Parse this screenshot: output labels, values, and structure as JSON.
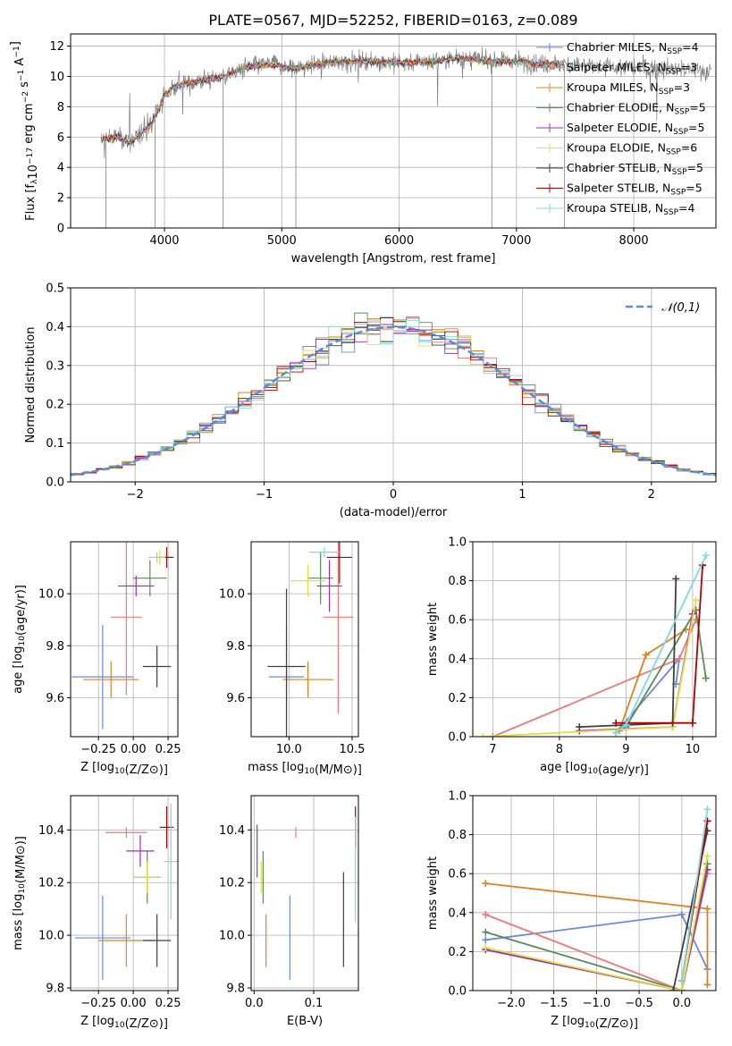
{
  "title": "PLATE=0567, MJD=52252, FIBERID=0163, z=0.089",
  "colors": {
    "Chabrier MILES": "#6a8ad8",
    "Salpeter MILES": "#f07878",
    "Kroupa MILES": "#e08020",
    "Chabrier ELODIE": "#5a8a5a",
    "Salpeter ELODIE": "#9b30b0",
    "Kroupa ELODIE": "#e0e040",
    "Chabrier STELIB": "#404040",
    "Salpeter STELIB": "#b00000",
    "Kroupa STELIB": "#80d8e0",
    "data": "#808080"
  },
  "chart_data": [
    {
      "id": "spectrum",
      "type": "line",
      "title": "PLATE=0567, MJD=52252, FIBERID=0163, z=0.089",
      "xlabel": "wavelength [Angstrom, rest frame]",
      "ylabel": "Flux [f_λ10^-17 erg cm^-2 s^-1 A^-1]",
      "xlim": [
        3200,
        8700
      ],
      "ylim": [
        0,
        12.8
      ],
      "xticks": [
        4000,
        5000,
        6000,
        7000,
        8000
      ],
      "yticks": [
        0,
        2,
        4,
        6,
        8,
        10,
        12
      ],
      "legend_position": "right",
      "legend": [
        {
          "label": "Chabrier MILES, N",
          "sub": "SSP",
          "tail": "=4",
          "model": "Chabrier MILES"
        },
        {
          "label": "Salpeter MILES, N",
          "sub": "SSP",
          "tail": "=3",
          "model": "Salpeter MILES"
        },
        {
          "label": "Kroupa MILES, N",
          "sub": "SSP",
          "tail": "=3",
          "model": "Kroupa MILES"
        },
        {
          "label": "Chabrier ELODIE, N",
          "sub": "SSP",
          "tail": "=5",
          "model": "Chabrier ELODIE"
        },
        {
          "label": "Salpeter ELODIE, N",
          "sub": "SSP",
          "tail": "=5",
          "model": "Salpeter ELODIE"
        },
        {
          "label": "Kroupa ELODIE, N",
          "sub": "SSP",
          "tail": "=6",
          "model": "Kroupa ELODIE"
        },
        {
          "label": "Chabrier STELIB, N",
          "sub": "SSP",
          "tail": "=5",
          "model": "Chabrier STELIB"
        },
        {
          "label": "Salpeter STELIB, N",
          "sub": "SSP",
          "tail": "=5",
          "model": "Salpeter STELIB"
        },
        {
          "label": "Kroupa STELIB, N",
          "sub": "SSP",
          "tail": "=4",
          "model": "Kroupa STELIB"
        }
      ],
      "continuum": [
        [
          3460,
          5.8
        ],
        [
          3600,
          6.0
        ],
        [
          3700,
          5.6
        ],
        [
          3800,
          6.2
        ],
        [
          3900,
          7.0
        ],
        [
          3950,
          7.8
        ],
        [
          4000,
          8.8
        ],
        [
          4100,
          9.4
        ],
        [
          4300,
          9.7
        ],
        [
          4500,
          10.0
        ],
        [
          4700,
          10.6
        ],
        [
          4900,
          10.8
        ],
        [
          5100,
          10.5
        ],
        [
          5300,
          10.8
        ],
        [
          5500,
          11.0
        ],
        [
          5800,
          11.0
        ],
        [
          6000,
          10.9
        ],
        [
          6300,
          11.0
        ],
        [
          6500,
          11.2
        ],
        [
          6800,
          11.0
        ],
        [
          7000,
          11.0
        ],
        [
          7200,
          10.8
        ],
        [
          7400,
          10.8
        ],
        [
          7700,
          10.6
        ],
        [
          8000,
          10.6
        ],
        [
          8300,
          10.5
        ],
        [
          8600,
          10.4
        ]
      ],
      "model_range": [
        3460,
        7400
      ],
      "spikes": [
        {
          "x": 3500,
          "y": 0
        },
        {
          "x": 3920,
          "y": 0
        },
        {
          "x": 4500,
          "y": 0
        },
        {
          "x": 5120,
          "y": 0
        },
        {
          "x": 6790,
          "y": 0
        },
        {
          "x": 7410,
          "y": 0
        }
      ]
    },
    {
      "id": "residual_histogram",
      "type": "bar",
      "xlabel": "(data-model)/error",
      "ylabel": "Normed distribution",
      "xlim": [
        -2.5,
        2.5
      ],
      "ylim": [
        0,
        0.5
      ],
      "xticks": [
        -2,
        -1,
        0,
        1,
        2
      ],
      "yticks": [
        0.0,
        0.1,
        0.2,
        0.3,
        0.4,
        0.5
      ],
      "legend": "𝒩(0,1)",
      "legend_position": "top-right",
      "bin_width": 0.1,
      "x_start": -2.5,
      "n_bins": 50
    },
    {
      "id": "age_vs_Z",
      "type": "scatter",
      "xlabel": "Z [log10(Z/Z⊙)]",
      "ylabel": "age  [log10(age/yr)]",
      "xlim": [
        -0.45,
        0.32
      ],
      "ylim": [
        9.45,
        10.2
      ],
      "xticks": [
        -0.25,
        0.0,
        0.25
      ],
      "yticks": [
        9.6,
        9.8,
        10.0
      ],
      "points": [
        {
          "model": "Chabrier MILES",
          "x": -0.22,
          "y": 9.68,
          "xerr": 0.22,
          "yerr": 0.2
        },
        {
          "model": "Salpeter MILES",
          "x": -0.05,
          "y": 9.91,
          "xerr": 0.11,
          "yerr": 0.3
        },
        {
          "model": "Kroupa MILES",
          "x": -0.16,
          "y": 9.67,
          "xerr": 0.2,
          "yerr": 0.07
        },
        {
          "model": "Chabrier ELODIE",
          "x": 0.12,
          "y": 10.06,
          "xerr": 0.12,
          "yerr": 0.07
        },
        {
          "model": "Salpeter ELODIE",
          "x": 0.02,
          "y": 10.03,
          "xerr": 0.13,
          "yerr": 0.04
        },
        {
          "model": "Kroupa ELODIE",
          "x": 0.19,
          "y": 10.14,
          "xerr": 0.04,
          "yerr": 0.03
        },
        {
          "model": "Chabrier STELIB",
          "x": 0.17,
          "y": 9.72,
          "xerr": 0.1,
          "yerr": 0.08
        },
        {
          "model": "Salpeter STELIB",
          "x": 0.24,
          "y": 10.14,
          "xerr": 0.05,
          "yerr": 0.04
        },
        {
          "model": "Kroupa STELIB",
          "x": 0.17,
          "y": 10.14,
          "xerr": 0.06,
          "yerr": 0.02
        }
      ]
    },
    {
      "id": "age_vs_mass",
      "type": "scatter",
      "xlabel": "mass [log10(M/M⊙)]",
      "ylabel": "",
      "xlim": [
        9.7,
        10.55
      ],
      "ylim": [
        9.45,
        10.2
      ],
      "xticks": [
        10.0,
        10.5
      ],
      "yticks": [
        9.6,
        9.8,
        10.0
      ],
      "points": [
        {
          "model": "Chabrier MILES",
          "x": 9.98,
          "y": 9.68,
          "xerr": 0.14,
          "yerr": 0.2
        },
        {
          "model": "Salpeter MILES",
          "x": 10.39,
          "y": 9.91,
          "xerr": 0.12,
          "yerr": 0.37
        },
        {
          "model": "Kroupa MILES",
          "x": 10.15,
          "y": 9.67,
          "xerr": 0.2,
          "yerr": 0.07
        },
        {
          "model": "Chabrier ELODIE",
          "x": 10.25,
          "y": 10.06,
          "xerr": 0.1,
          "yerr": 0.1
        },
        {
          "model": "Salpeter ELODIE",
          "x": 10.32,
          "y": 10.03,
          "xerr": 0.1,
          "yerr": 0.1
        },
        {
          "model": "Kroupa ELODIE",
          "x": 10.15,
          "y": 10.05,
          "xerr": 0.14,
          "yerr": 0.06
        },
        {
          "model": "Chabrier STELIB",
          "x": 9.98,
          "y": 9.72,
          "xerr": 0.15,
          "yerr": 0.3
        },
        {
          "model": "Salpeter STELIB",
          "x": 10.4,
          "y": 10.14,
          "xerr": 0.1,
          "yerr": 0.1
        },
        {
          "model": "Kroupa STELIB",
          "x": 10.28,
          "y": 10.16,
          "xerr": 0.12,
          "yerr": 0.02
        }
      ]
    },
    {
      "id": "mass_weight_vs_age",
      "type": "line",
      "xlabel": "age  [log10(age/yr)]",
      "ylabel": "mass weight",
      "xlim": [
        6.7,
        10.35
      ],
      "ylim": [
        0,
        1.0
      ],
      "xticks": [
        7,
        8,
        9,
        10
      ],
      "yticks": [
        0.0,
        0.2,
        0.4,
        0.6,
        0.8,
        1.0
      ],
      "series": [
        {
          "model": "Chabrier MILES",
          "x": [
            8.85,
            9.8,
            9.75
          ],
          "y": [
            0.02,
            0.4,
            0.27
          ]
        },
        {
          "model": "Salpeter MILES",
          "x": [
            7.0,
            9.8,
            10.05
          ],
          "y": [
            0.0,
            0.4,
            0.6
          ]
        },
        {
          "model": "Kroupa MILES",
          "x": [
            8.9,
            9.3,
            9.9
          ],
          "y": [
            0.03,
            0.42,
            0.55
          ]
        },
        {
          "model": "Chabrier ELODIE",
          "x": [
            8.85,
            9.0,
            10.05,
            10.2
          ],
          "y": [
            0.02,
            0.05,
            0.65,
            0.3
          ]
        },
        {
          "model": "Salpeter ELODIE",
          "x": [
            8.3,
            9.7,
            10.0
          ],
          "y": [
            0.03,
            0.05,
            0.63
          ]
        },
        {
          "model": "Kroupa ELODIE",
          "x": [
            6.85,
            9.7,
            10.05
          ],
          "y": [
            0.0,
            0.05,
            0.7
          ]
        },
        {
          "model": "Chabrier STELIB",
          "x": [
            8.3,
            9.7,
            9.75
          ],
          "y": [
            0.05,
            0.07,
            0.81
          ]
        },
        {
          "model": "Salpeter STELIB",
          "x": [
            8.85,
            10.0,
            10.15
          ],
          "y": [
            0.07,
            0.07,
            0.88
          ]
        },
        {
          "model": "Kroupa STELIB",
          "x": [
            8.85,
            9.0,
            10.2
          ],
          "y": [
            0.02,
            0.06,
            0.93
          ]
        }
      ]
    },
    {
      "id": "mass_vs_Z",
      "type": "scatter",
      "xlabel": "Z [log10(Z/Z⊙)]",
      "ylabel": "mass [log10(M/M⊙)]",
      "xlim": [
        -0.45,
        0.32
      ],
      "ylim": [
        9.79,
        10.53
      ],
      "xticks": [
        -0.25,
        0.0,
        0.25
      ],
      "yticks": [
        9.8,
        10.0,
        10.2,
        10.4
      ],
      "points": [
        {
          "model": "Chabrier MILES",
          "x": -0.22,
          "y": 9.99,
          "xerr": 0.2,
          "yerr": 0.16
        },
        {
          "model": "Salpeter MILES",
          "x": -0.05,
          "y": 10.39,
          "xerr": 0.15,
          "yerr": 0.02
        },
        {
          "model": "Kroupa MILES",
          "x": -0.05,
          "y": 9.98,
          "xerr": 0.2,
          "yerr": 0.1
        },
        {
          "model": "Chabrier ELODIE",
          "x": 0.1,
          "y": 10.22,
          "xerr": 0.1,
          "yerr": 0.1
        },
        {
          "model": "Salpeter ELODIE",
          "x": 0.05,
          "y": 10.32,
          "xerr": 0.1,
          "yerr": 0.06
        },
        {
          "model": "Kroupa ELODIE",
          "x": 0.1,
          "y": 10.22,
          "xerr": 0.1,
          "yerr": 0.06
        },
        {
          "model": "Chabrier STELIB",
          "x": 0.17,
          "y": 9.98,
          "xerr": 0.1,
          "yerr": 0.1
        },
        {
          "model": "Salpeter STELIB",
          "x": 0.24,
          "y": 10.41,
          "xerr": 0.05,
          "yerr": 0.08
        },
        {
          "model": "Kroupa STELIB",
          "x": 0.27,
          "y": 10.28,
          "xerr": 0.05,
          "yerr": 0.22
        }
      ]
    },
    {
      "id": "mass_vs_ebv",
      "type": "scatter",
      "xlabel": "E(B-V)",
      "ylabel": "",
      "xlim": [
        -0.005,
        0.175
      ],
      "ylim": [
        9.79,
        10.53
      ],
      "xticks": [
        0.0,
        0.1
      ],
      "yticks": [
        9.8,
        10.0,
        10.2,
        10.4
      ],
      "points": [
        {
          "model": "Chabrier MILES",
          "x": 0.06,
          "y": 9.99,
          "xerr": 0,
          "yerr": 0.16
        },
        {
          "model": "Salpeter MILES",
          "x": 0.07,
          "y": 10.39,
          "xerr": 0,
          "yerr": 0.02
        },
        {
          "model": "Kroupa MILES",
          "x": 0.02,
          "y": 9.98,
          "xerr": 0,
          "yerr": 0.1
        },
        {
          "model": "Chabrier ELODIE",
          "x": 0.015,
          "y": 10.22,
          "xerr": 0,
          "yerr": 0.1
        },
        {
          "model": "Salpeter ELODIE",
          "x": 0.005,
          "y": 10.32,
          "xerr": 0,
          "yerr": 0.1
        },
        {
          "model": "Kroupa ELODIE",
          "x": 0.012,
          "y": 10.22,
          "xerr": 0,
          "yerr": 0.06
        },
        {
          "model": "Chabrier STELIB",
          "x": 0.15,
          "y": 10.06,
          "xerr": 0,
          "yerr": 0.18
        },
        {
          "model": "Salpeter STELIB",
          "x": 0.17,
          "y": 10.41,
          "xerr": 0,
          "yerr": 0.08
        },
        {
          "model": "Kroupa STELIB",
          "x": 0.17,
          "y": 10.25,
          "xerr": 0,
          "yerr": 0.2
        }
      ]
    },
    {
      "id": "mass_weight_vs_Z",
      "type": "line",
      "xlabel": "Z [log10(Z/Z⊙)]",
      "ylabel": "mass weight",
      "xlim": [
        -2.45,
        0.4
      ],
      "ylim": [
        0,
        1.0
      ],
      "xticks": [
        -2.0,
        -1.5,
        -1.0,
        -0.5,
        0.0
      ],
      "yticks": [
        0.0,
        0.2,
        0.4,
        0.6,
        0.8,
        1.0
      ],
      "series": [
        {
          "model": "Chabrier MILES",
          "x": [
            -2.3,
            0.0,
            0.3
          ],
          "y": [
            0.26,
            0.39,
            0.11
          ]
        },
        {
          "model": "Salpeter MILES",
          "x": [
            -2.3,
            0.0,
            0.3
          ],
          "y": [
            0.39,
            0.0,
            0.6
          ]
        },
        {
          "model": "Kroupa MILES",
          "x": [
            -2.3,
            0.3,
            0.3
          ],
          "y": [
            0.55,
            0.42,
            0.03
          ]
        },
        {
          "model": "Chabrier ELODIE",
          "x": [
            -2.3,
            0.0,
            0.3
          ],
          "y": [
            0.3,
            0.0,
            0.65
          ]
        },
        {
          "model": "Salpeter ELODIE",
          "x": [
            -2.3,
            0.0,
            0.3
          ],
          "y": [
            0.21,
            0.0,
            0.62
          ]
        },
        {
          "model": "Kroupa ELODIE",
          "x": [
            -2.3,
            0.0,
            0.3
          ],
          "y": [
            0.22,
            0.0,
            0.69
          ]
        },
        {
          "model": "Chabrier STELIB",
          "x": [
            -0.1,
            0.3
          ],
          "y": [
            0.0,
            0.82
          ]
        },
        {
          "model": "Salpeter STELIB",
          "x": [
            0.0,
            0.3
          ],
          "y": [
            0.05,
            0.87
          ]
        },
        {
          "model": "Kroupa STELIB",
          "x": [
            0.0,
            0.3
          ],
          "y": [
            0.05,
            0.93
          ]
        }
      ]
    }
  ]
}
